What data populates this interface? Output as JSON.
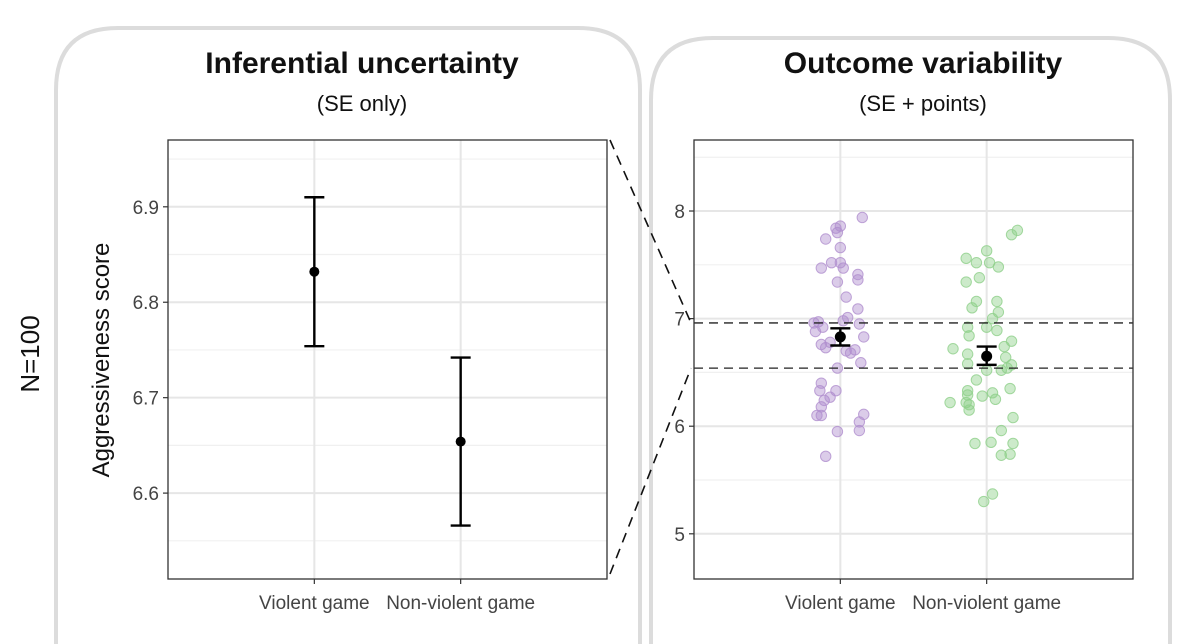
{
  "row_label": "N=100",
  "colors": {
    "frame": "#dcdcdc",
    "grid_major": "#e6e6e6",
    "grid_minor": "#f0f0f0",
    "axis": "#333333",
    "point_violent": "#b08fce",
    "point_nonviolent": "#8fd08a",
    "estimate": "#000000"
  },
  "chart_data": [
    {
      "type": "scatter",
      "title": "Inferential uncertainty",
      "subtitle": "(SE only)",
      "ylabel": "Aggressiveness score",
      "xlabel": "",
      "categories": [
        "Violent game",
        "Non-violent game"
      ],
      "ylim": [
        6.51,
        6.97
      ],
      "yticks": [
        "6.6",
        "6.7",
        "6.8",
        "6.9"
      ],
      "grid": true,
      "estimates": [
        {
          "category": "Violent game",
          "mean": 6.832,
          "lower": 6.754,
          "upper": 6.91
        },
        {
          "category": "Non-violent game",
          "mean": 6.654,
          "lower": 6.566,
          "upper": 6.742
        }
      ]
    },
    {
      "type": "scatter",
      "title": "Outcome variability",
      "subtitle": "(SE + points)",
      "ylabel": "",
      "xlabel": "",
      "categories": [
        "Violent game",
        "Non-violent game"
      ],
      "ylim": [
        4.58,
        8.66
      ],
      "yticks": [
        "5",
        "6",
        "7",
        "8"
      ],
      "grid": true,
      "reference_band": [
        6.54,
        6.96
      ],
      "estimates": [
        {
          "category": "Violent game",
          "mean": 6.83,
          "lower": 6.75,
          "upper": 6.91
        },
        {
          "category": "Non-violent game",
          "mean": 6.65,
          "lower": 6.57,
          "upper": 6.74
        }
      ],
      "series": [
        {
          "category": "Violent game",
          "points": [
            [
              -0.1,
              5.72
            ],
            [
              -0.02,
              5.95
            ],
            [
              0.13,
              5.96
            ],
            [
              0.13,
              6.04
            ],
            [
              0.16,
              6.11
            ],
            [
              -0.16,
              6.1
            ],
            [
              -0.13,
              6.1
            ],
            [
              -0.13,
              6.18
            ],
            [
              -0.11,
              6.24
            ],
            [
              -0.07,
              6.27
            ],
            [
              -0.14,
              6.33
            ],
            [
              -0.13,
              6.4
            ],
            [
              -0.03,
              6.33
            ],
            [
              0.14,
              6.59
            ],
            [
              -0.02,
              6.54
            ],
            [
              0.07,
              6.68
            ],
            [
              0.04,
              6.7
            ],
            [
              0.1,
              6.71
            ],
            [
              -0.1,
              6.73
            ],
            [
              -0.07,
              6.78
            ],
            [
              -0.13,
              6.76
            ],
            [
              0.16,
              6.83
            ],
            [
              -0.12,
              6.92
            ],
            [
              -0.15,
              6.97
            ],
            [
              -0.18,
              6.96
            ],
            [
              -0.17,
              6.88
            ],
            [
              0.13,
              6.95
            ],
            [
              0.02,
              6.98
            ],
            [
              0.05,
              7.01
            ],
            [
              0.12,
              7.09
            ],
            [
              0.04,
              7.2
            ],
            [
              -0.02,
              7.34
            ],
            [
              0.12,
              7.36
            ],
            [
              0.12,
              7.41
            ],
            [
              0.02,
              7.47
            ],
            [
              -0.13,
              7.47
            ],
            [
              -0.06,
              7.52
            ],
            [
              0.0,
              7.52
            ],
            [
              0.0,
              7.66
            ],
            [
              -0.02,
              7.8
            ],
            [
              -0.03,
              7.84
            ],
            [
              0.0,
              7.86
            ],
            [
              -0.1,
              7.74
            ],
            [
              0.15,
              7.94
            ]
          ]
        },
        {
          "category": "Non-violent game",
          "points": [
            [
              -0.02,
              5.3
            ],
            [
              0.04,
              5.37
            ],
            [
              0.1,
              5.73
            ],
            [
              0.16,
              5.74
            ],
            [
              0.18,
              5.84
            ],
            [
              0.03,
              5.85
            ],
            [
              -0.08,
              5.84
            ],
            [
              0.1,
              5.96
            ],
            [
              0.18,
              6.08
            ],
            [
              -0.12,
              6.15
            ],
            [
              -0.12,
              6.2
            ],
            [
              -0.14,
              6.22
            ],
            [
              -0.25,
              6.22
            ],
            [
              0.06,
              6.25
            ],
            [
              -0.03,
              6.28
            ],
            [
              -0.13,
              6.29
            ],
            [
              0.04,
              6.31
            ],
            [
              0.16,
              6.35
            ],
            [
              -0.13,
              6.33
            ],
            [
              -0.07,
              6.43
            ],
            [
              0.1,
              6.52
            ],
            [
              0.14,
              6.54
            ],
            [
              0.17,
              6.57
            ],
            [
              0.0,
              6.52
            ],
            [
              -0.13,
              6.58
            ],
            [
              0.13,
              6.64
            ],
            [
              -0.13,
              6.67
            ],
            [
              -0.23,
              6.72
            ],
            [
              0.12,
              6.74
            ],
            [
              0.17,
              6.79
            ],
            [
              -0.12,
              6.84
            ],
            [
              0.07,
              6.89
            ],
            [
              0.0,
              6.92
            ],
            [
              -0.13,
              6.92
            ],
            [
              0.04,
              7.0
            ],
            [
              0.08,
              7.06
            ],
            [
              -0.1,
              7.1
            ],
            [
              -0.07,
              7.16
            ],
            [
              0.07,
              7.16
            ],
            [
              -0.14,
              7.34
            ],
            [
              -0.05,
              7.38
            ],
            [
              0.08,
              7.48
            ],
            [
              -0.07,
              7.52
            ],
            [
              -0.14,
              7.56
            ],
            [
              0.02,
              7.52
            ],
            [
              0.0,
              7.63
            ],
            [
              0.17,
              7.78
            ],
            [
              0.21,
              7.82
            ]
          ]
        }
      ]
    }
  ]
}
